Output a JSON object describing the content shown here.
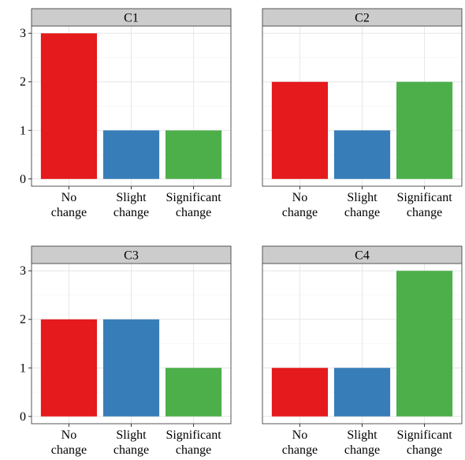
{
  "chart_data": {
    "type": "bar",
    "layout": "facet-grid 2x2",
    "categories": [
      [
        "No",
        "change"
      ],
      [
        "Slight",
        "change"
      ],
      [
        "Significant",
        "change"
      ]
    ],
    "colors": [
      "#E41A1C",
      "#377EB8",
      "#4DAF4A"
    ],
    "ylim": [
      0,
      3
    ],
    "yticks": [
      0,
      1,
      2,
      3
    ],
    "grid": true,
    "legend": "none",
    "panels": [
      {
        "title": "C1",
        "values": [
          3,
          1,
          1
        ]
      },
      {
        "title": "C2",
        "values": [
          2,
          1,
          2
        ]
      },
      {
        "title": "C3",
        "values": [
          2,
          2,
          1
        ]
      },
      {
        "title": "C4",
        "values": [
          1,
          1,
          3
        ]
      }
    ]
  }
}
